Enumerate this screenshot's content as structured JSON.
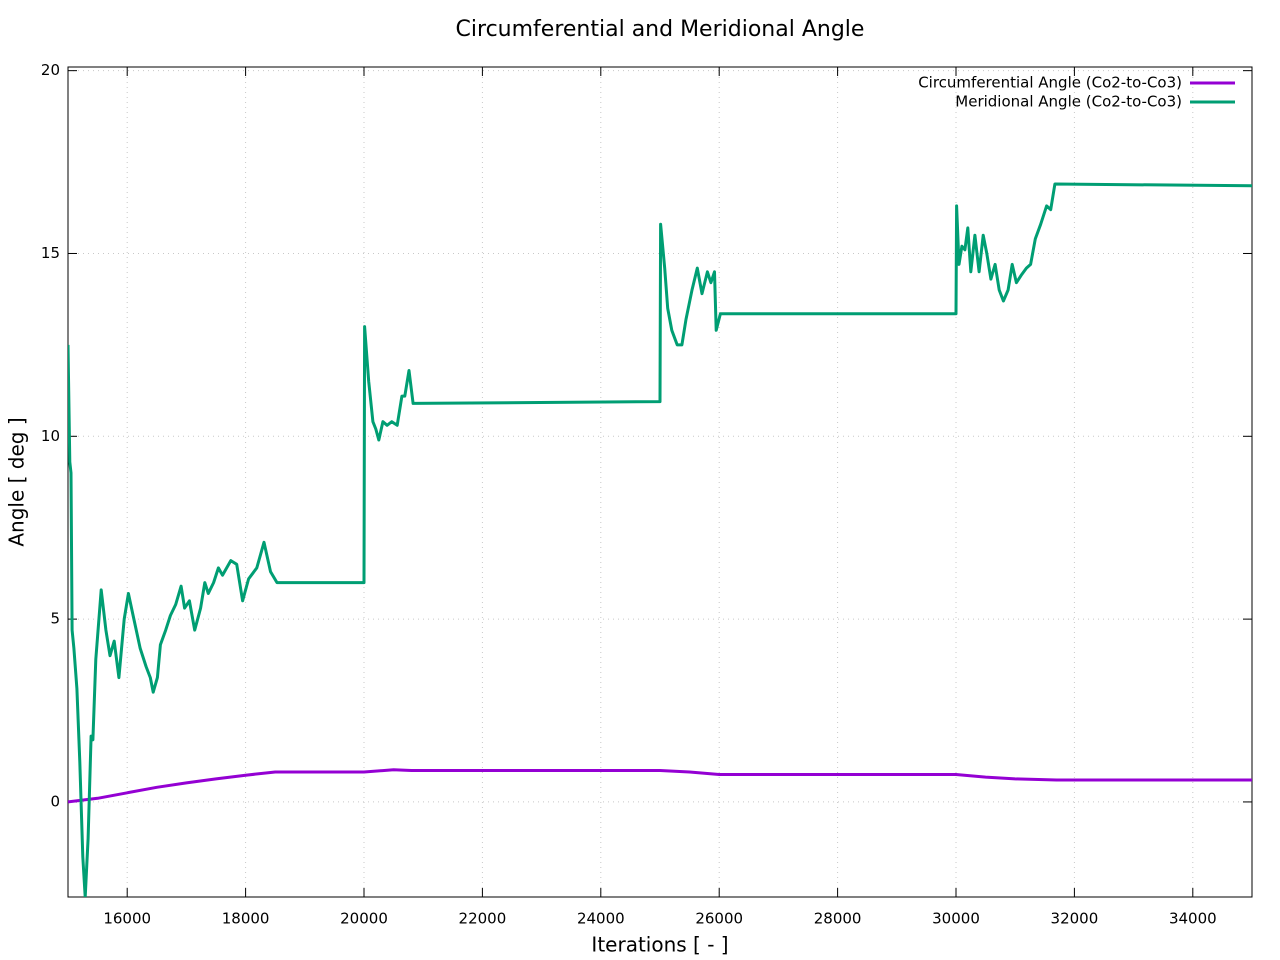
{
  "chart_data": {
    "type": "line",
    "title": "Circumferential and Meridional Angle",
    "xlabel": "Iterations [ - ]",
    "ylabel": "Angle [ deg ]",
    "xlim": [
      15000,
      35000
    ],
    "ylim": [
      -2.6,
      20.1
    ],
    "xticks": [
      16000,
      18000,
      20000,
      22000,
      24000,
      26000,
      28000,
      30000,
      32000,
      34000
    ],
    "yticks": [
      0,
      5,
      10,
      15,
      20
    ],
    "grid": true,
    "legend": "top-right",
    "series": [
      {
        "name": "Circumferential Angle (Co2-to-Co3)",
        "color": "#9400d3",
        "x": [
          15000,
          15500,
          16000,
          16500,
          17000,
          17500,
          18000,
          18500,
          20000,
          20500,
          20800,
          25000,
          25500,
          26000,
          30000,
          30500,
          31000,
          31700,
          35000
        ],
        "values": [
          0,
          0.1,
          0.25,
          0.4,
          0.52,
          0.63,
          0.73,
          0.82,
          0.82,
          0.88,
          0.86,
          0.86,
          0.82,
          0.75,
          0.75,
          0.68,
          0.63,
          0.6,
          0.6
        ]
      },
      {
        "name": "Meridional Angle (Co2-to-Co3)",
        "color": "#009e73",
        "x": [
          15000,
          15030,
          15050,
          15070,
          15100,
          15150,
          15200,
          15250,
          15290,
          15340,
          15390,
          15420,
          15470,
          15560,
          15640,
          15710,
          15780,
          15860,
          15950,
          16020,
          16100,
          16220,
          16320,
          16390,
          16440,
          16510,
          16560,
          16650,
          16730,
          16820,
          16910,
          16970,
          17050,
          17140,
          17240,
          17310,
          17370,
          17460,
          17540,
          17610,
          17750,
          17850,
          17950,
          18050,
          18190,
          18310,
          18420,
          18530,
          20000,
          20010,
          20080,
          20150,
          20200,
          20250,
          20320,
          20390,
          20470,
          20560,
          20640,
          20690,
          20760,
          20830,
          25000,
          25010,
          25080,
          25130,
          25200,
          25290,
          25370,
          25440,
          25540,
          25630,
          25710,
          25800,
          25860,
          25920,
          25950,
          26020,
          30000,
          30010,
          30050,
          30100,
          30150,
          30200,
          30250,
          30320,
          30390,
          30460,
          30520,
          30590,
          30660,
          30730,
          30800,
          30880,
          30950,
          31020,
          31100,
          31190,
          31260,
          31340,
          31430,
          31530,
          31600,
          31670,
          35000
        ],
        "values": [
          12.5,
          9.3,
          9.0,
          4.7,
          4.2,
          3.1,
          1.1,
          -1.5,
          -2.6,
          -1.0,
          1.8,
          1.7,
          3.9,
          5.8,
          4.7,
          4.0,
          4.4,
          3.4,
          5.0,
          5.7,
          5.1,
          4.2,
          3.7,
          3.4,
          3.0,
          3.4,
          4.3,
          4.7,
          5.1,
          5.4,
          5.9,
          5.3,
          5.5,
          4.7,
          5.3,
          6.0,
          5.7,
          6.0,
          6.4,
          6.2,
          6.6,
          6.5,
          5.5,
          6.1,
          6.4,
          7.1,
          6.3,
          6.0,
          6.0,
          13.0,
          11.5,
          10.4,
          10.2,
          9.9,
          10.4,
          10.3,
          10.4,
          10.3,
          11.1,
          11.1,
          11.8,
          10.9,
          10.95,
          15.8,
          14.6,
          13.5,
          12.9,
          12.5,
          12.5,
          13.2,
          14.0,
          14.6,
          13.9,
          14.5,
          14.2,
          14.5,
          12.9,
          13.35,
          13.35,
          16.3,
          14.7,
          15.2,
          15.1,
          15.7,
          14.5,
          15.5,
          14.5,
          15.5,
          15.0,
          14.3,
          14.7,
          14.0,
          13.7,
          14.0,
          14.7,
          14.2,
          14.4,
          14.6,
          14.7,
          15.4,
          15.8,
          16.3,
          16.2,
          16.9,
          16.85
        ]
      }
    ]
  }
}
